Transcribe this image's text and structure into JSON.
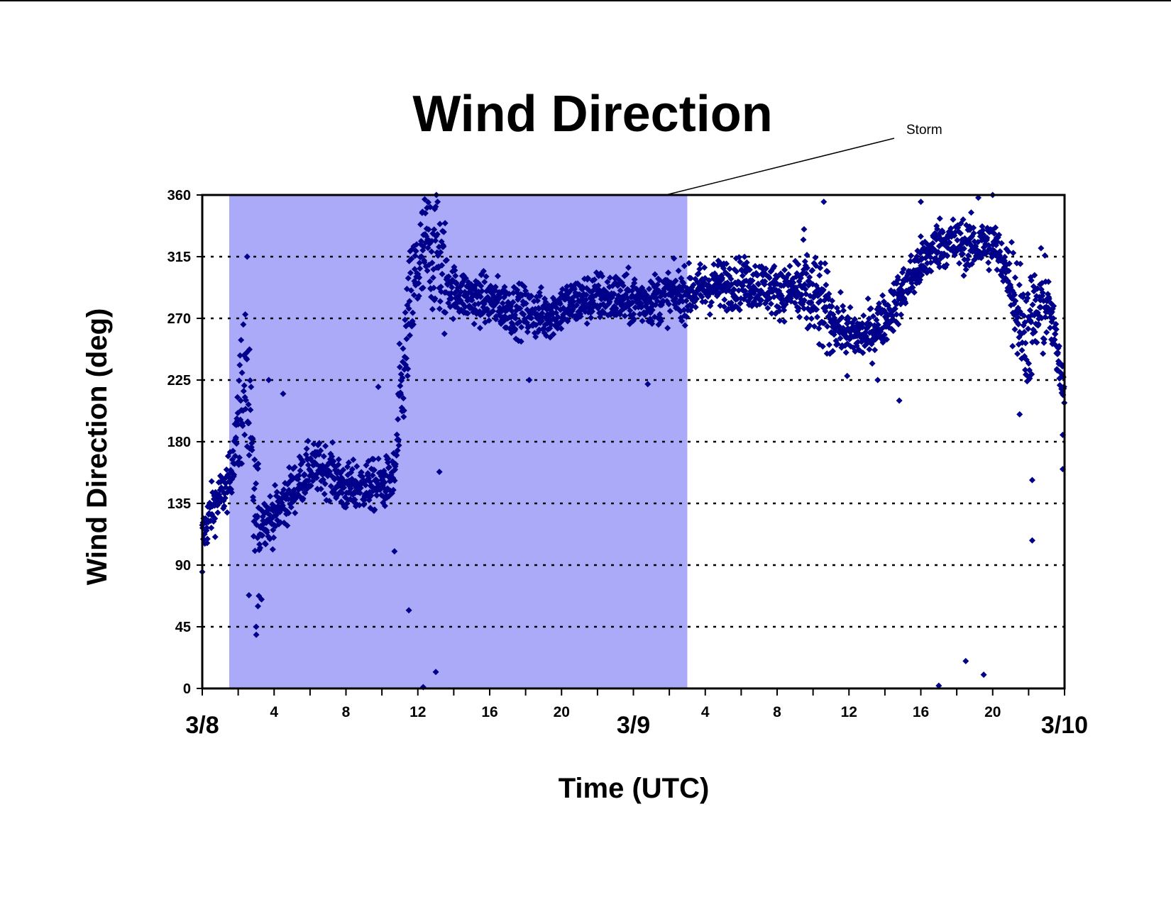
{
  "chart_data": {
    "type": "scatter",
    "title": "Wind Direction",
    "xlabel": "Time (UTC)",
    "ylabel": "Wind Direction (deg)",
    "x_unit": "hours since 3/8 00:00 UTC",
    "xlim": [
      0,
      48
    ],
    "ylim": [
      0,
      360
    ],
    "y_ticks": [
      0,
      45,
      90,
      135,
      180,
      225,
      270,
      315,
      360
    ],
    "x_minor_ticks": [
      {
        "x": 4,
        "label": "4"
      },
      {
        "x": 8,
        "label": "8"
      },
      {
        "x": 12,
        "label": "12"
      },
      {
        "x": 16,
        "label": "16"
      },
      {
        "x": 20,
        "label": "20"
      },
      {
        "x": 28,
        "label": "4"
      },
      {
        "x": 32,
        "label": "8"
      },
      {
        "x": 36,
        "label": "12"
      },
      {
        "x": 40,
        "label": "16"
      },
      {
        "x": 44,
        "label": "20"
      }
    ],
    "x_major_ticks": [
      {
        "x": 0,
        "label": "3/8"
      },
      {
        "x": 24,
        "label": "3/9"
      },
      {
        "x": 48,
        "label": "3/10"
      }
    ],
    "grid": "horizontal dotted",
    "legend": "none",
    "marker_color": "#00008b",
    "shade_color": "#aaaaf8",
    "shaded_region": {
      "label": "Storm",
      "x_start": 1.5,
      "x_end": 27
    },
    "annotation": {
      "text": "Storm"
    },
    "series_trend": [
      [
        0,
        110
      ],
      [
        0.5,
        130
      ],
      [
        1.0,
        140
      ],
      [
        1.5,
        150
      ],
      [
        1.8,
        175
      ],
      [
        2.3,
        230
      ],
      [
        2.6,
        195
      ],
      [
        3.0,
        110
      ],
      [
        3.4,
        125
      ],
      [
        4.0,
        125
      ],
      [
        5.0,
        145
      ],
      [
        6.0,
        160
      ],
      [
        7.0,
        160
      ],
      [
        8.0,
        145
      ],
      [
        9.0,
        148
      ],
      [
        10.0,
        148
      ],
      [
        10.7,
        155
      ],
      [
        11.2,
        230
      ],
      [
        11.5,
        270
      ],
      [
        12.0,
        305
      ],
      [
        12.5,
        320
      ],
      [
        13.0,
        320
      ],
      [
        13.5,
        300
      ],
      [
        14.0,
        290
      ],
      [
        15.0,
        285
      ],
      [
        16.0,
        283
      ],
      [
        17.0,
        278
      ],
      [
        18.0,
        275
      ],
      [
        19.0,
        272
      ],
      [
        20.0,
        278
      ],
      [
        21.0,
        283
      ],
      [
        22.0,
        286
      ],
      [
        23.0,
        285
      ],
      [
        24.0,
        283
      ],
      [
        25.0,
        284
      ],
      [
        26.0,
        287
      ],
      [
        27.0,
        288
      ],
      [
        28.0,
        292
      ],
      [
        29.0,
        295
      ],
      [
        30.0,
        296
      ],
      [
        31.0,
        295
      ],
      [
        32.0,
        290
      ],
      [
        33.0,
        290
      ],
      [
        34.0,
        285
      ],
      [
        35.0,
        270
      ],
      [
        36.0,
        258
      ],
      [
        37.0,
        258
      ],
      [
        38.0,
        270
      ],
      [
        39.0,
        290
      ],
      [
        40.0,
        310
      ],
      [
        41.0,
        325
      ],
      [
        42.0,
        325
      ],
      [
        43.0,
        322
      ],
      [
        44.0,
        325
      ],
      [
        45.0,
        300
      ],
      [
        45.5,
        270
      ],
      [
        46.0,
        260
      ],
      [
        47.0,
        285
      ],
      [
        48.0,
        220
      ]
    ],
    "series_outliers": [
      [
        0,
        85
      ],
      [
        3.0,
        45
      ],
      [
        3.1,
        60
      ],
      [
        3.3,
        65
      ],
      [
        2.6,
        68
      ],
      [
        2.5,
        315
      ],
      [
        3.7,
        225
      ],
      [
        4.5,
        215
      ],
      [
        9.8,
        220
      ],
      [
        10.7,
        100
      ],
      [
        11.5,
        57
      ],
      [
        12.3,
        1
      ],
      [
        13.0,
        12
      ],
      [
        13.2,
        158
      ],
      [
        13.1,
        355
      ],
      [
        18.2,
        225
      ],
      [
        24.8,
        222
      ],
      [
        33.5,
        335
      ],
      [
        34.6,
        355
      ],
      [
        35.9,
        228
      ],
      [
        37.6,
        225
      ],
      [
        38.8,
        210
      ],
      [
        40.0,
        355
      ],
      [
        41.0,
        2
      ],
      [
        42.5,
        20
      ],
      [
        43.5,
        10
      ],
      [
        43.2,
        358
      ],
      [
        44.0,
        360
      ],
      [
        45.5,
        200
      ],
      [
        46.2,
        152
      ],
      [
        46.2,
        108
      ],
      [
        47.9,
        160
      ],
      [
        47.9,
        185
      ]
    ]
  }
}
